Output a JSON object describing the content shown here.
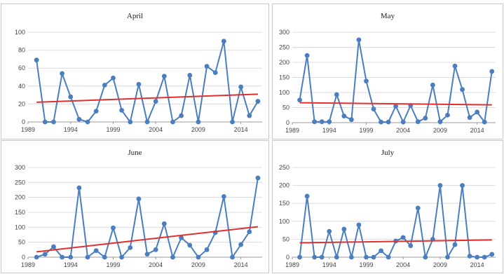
{
  "chart_data": [
    {
      "type": "line",
      "title": "April",
      "ylim": [
        0,
        100
      ],
      "yticks": [
        "0",
        "20",
        "40",
        "60",
        "80",
        "100"
      ],
      "xlim": [
        1989,
        2016.5
      ],
      "xticks": [
        "1989",
        "1994",
        "1999",
        "2004",
        "2009",
        "2014"
      ],
      "grid": "horizontal",
      "series": [
        {
          "x": [
            1990,
            1991,
            1992,
            1993,
            1994,
            1995,
            1996,
            1997,
            1998,
            1999,
            2000,
            2001,
            2002,
            2003,
            2004,
            2005,
            2006,
            2007,
            2008,
            2009,
            2010,
            2011,
            2012,
            2013,
            2014,
            2015,
            2016
          ],
          "values": [
            69,
            0,
            0,
            54,
            28,
            3,
            0,
            12,
            41,
            49,
            13,
            0,
            42,
            0,
            23,
            51,
            0,
            7,
            52,
            0,
            62,
            55,
            90,
            0,
            39,
            7,
            23
          ],
          "color": "#4a7ebf"
        }
      ],
      "trend": {
        "x": [
          1990,
          2016
        ],
        "values": [
          22,
          31
        ],
        "color": "#e03030"
      }
    },
    {
      "type": "line",
      "title": "May",
      "ylim": [
        0,
        300
      ],
      "yticks": [
        "0",
        "50",
        "100",
        "150",
        "200",
        "250",
        "300"
      ],
      "xlim": [
        1989,
        2016.5
      ],
      "xticks": [
        "1989",
        "1994",
        "1999",
        "2004",
        "2009",
        "2014"
      ],
      "grid": "horizontal",
      "series": [
        {
          "x": [
            1990,
            1991,
            1992,
            1993,
            1994,
            1995,
            1996,
            1997,
            1998,
            1999,
            2000,
            2001,
            2002,
            2003,
            2004,
            2005,
            2006,
            2007,
            2008,
            2009,
            2010,
            2011,
            2012,
            2013,
            2014,
            2015,
            2016
          ],
          "values": [
            75,
            223,
            3,
            3,
            3,
            93,
            22,
            10,
            275,
            138,
            45,
            2,
            2,
            55,
            2,
            57,
            3,
            15,
            125,
            3,
            25,
            188,
            110,
            17,
            35,
            2,
            170
          ],
          "color": "#4a7ebf"
        }
      ],
      "trend": {
        "x": [
          1990,
          2016
        ],
        "values": [
          66,
          59
        ],
        "color": "#e03030"
      }
    },
    {
      "type": "line",
      "title": "June",
      "ylim": [
        0,
        300
      ],
      "yticks": [
        "0",
        "50",
        "100",
        "150",
        "200",
        "250",
        "300"
      ],
      "xlim": [
        1989,
        2016.5
      ],
      "xticks": [
        "1989",
        "1994",
        "1999",
        "2004",
        "2009",
        "2014"
      ],
      "grid": "horizontal",
      "series": [
        {
          "x": [
            1990,
            1991,
            1992,
            1993,
            1994,
            1995,
            1996,
            1997,
            1998,
            1999,
            2000,
            2001,
            2002,
            2003,
            2004,
            2005,
            2006,
            2007,
            2008,
            2009,
            2010,
            2011,
            2012,
            2013,
            2014,
            2015,
            2016
          ],
          "values": [
            0,
            10,
            35,
            0,
            0,
            232,
            0,
            22,
            0,
            98,
            0,
            32,
            195,
            10,
            25,
            112,
            0,
            65,
            40,
            0,
            25,
            82,
            203,
            0,
            42,
            85,
            265
          ],
          "color": "#4a7ebf"
        }
      ],
      "trend": {
        "x": [
          1990,
          2016
        ],
        "values": [
          18,
          102
        ],
        "color": "#e03030"
      }
    },
    {
      "type": "line",
      "title": "July",
      "ylim": [
        0,
        250
      ],
      "yticks": [
        "0",
        "50",
        "100",
        "150",
        "200",
        "250"
      ],
      "xlim": [
        1989,
        2016.5
      ],
      "xticks": [
        "1989",
        "1994",
        "1999",
        "2004",
        "2009",
        "2014"
      ],
      "grid": "horizontal",
      "series": [
        {
          "x": [
            1990,
            1991,
            1992,
            1993,
            1994,
            1995,
            1996,
            1997,
            1998,
            1999,
            2000,
            2001,
            2002,
            2003,
            2004,
            2005,
            2006,
            2007,
            2008,
            2009,
            2010,
            2011,
            2012,
            2013,
            2014,
            2015,
            2016
          ],
          "values": [
            0,
            170,
            0,
            0,
            72,
            0,
            78,
            0,
            90,
            0,
            0,
            18,
            0,
            45,
            55,
            32,
            137,
            0,
            50,
            200,
            0,
            35,
            200,
            3,
            0,
            0,
            8
          ],
          "color": "#4a7ebf"
        }
      ],
      "trend": {
        "x": [
          1990,
          2016
        ],
        "values": [
          40,
          48
        ],
        "color": "#e03030"
      }
    }
  ]
}
